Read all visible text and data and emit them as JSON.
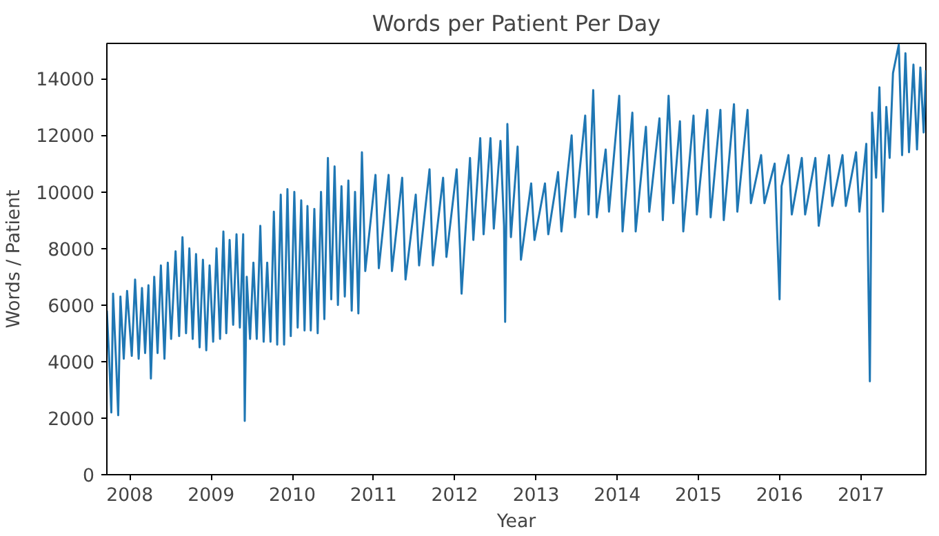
{
  "chart_data": {
    "type": "line",
    "title": "Words per Patient Per Day",
    "xlabel": "Year",
    "ylabel": "Words / Patient",
    "xlim": [
      "2007-09-20",
      "2017-10-20"
    ],
    "ylim": [
      0,
      15250
    ],
    "xticks": [
      {
        "value": "2008-01-01",
        "label": "2008"
      },
      {
        "value": "2009-01-01",
        "label": "2009"
      },
      {
        "value": "2010-01-01",
        "label": "2010"
      },
      {
        "value": "2011-01-01",
        "label": "2011"
      },
      {
        "value": "2012-01-01",
        "label": "2012"
      },
      {
        "value": "2013-01-01",
        "label": "2013"
      },
      {
        "value": "2014-01-01",
        "label": "2014"
      },
      {
        "value": "2015-01-01",
        "label": "2015"
      },
      {
        "value": "2016-01-01",
        "label": "2016"
      },
      {
        "value": "2017-01-01",
        "label": "2017"
      }
    ],
    "yticks": [
      0,
      2000,
      4000,
      6000,
      8000,
      10000,
      12000,
      14000
    ],
    "grid": false,
    "marker": "none",
    "line_style": "solid",
    "x": [
      "2007-09-20",
      "2007-10-01",
      "2007-10-10",
      "2007-10-18",
      "2007-11-01",
      "2007-11-10",
      "2007-11-20",
      "2007-12-05",
      "2007-12-20",
      "2008-01-10",
      "2008-01-25",
      "2008-02-10",
      "2008-02-25",
      "2008-03-10",
      "2008-03-25",
      "2008-04-05",
      "2008-04-20",
      "2008-05-05",
      "2008-05-20",
      "2008-06-05",
      "2008-06-20",
      "2008-07-05",
      "2008-07-25",
      "2008-08-10",
      "2008-08-25",
      "2008-09-10",
      "2008-09-25",
      "2008-10-10",
      "2008-10-25",
      "2008-11-10",
      "2008-11-25",
      "2008-12-10",
      "2008-12-25",
      "2009-01-10",
      "2009-01-25",
      "2009-02-10",
      "2009-02-25",
      "2009-03-10",
      "2009-03-25",
      "2009-04-10",
      "2009-04-25",
      "2009-05-10",
      "2009-05-25",
      "2009-06-01",
      "2009-06-10",
      "2009-06-25",
      "2009-07-10",
      "2009-07-25",
      "2009-08-10",
      "2009-08-25",
      "2009-09-10",
      "2009-09-25",
      "2009-10-10",
      "2009-10-25",
      "2009-11-10",
      "2009-11-25",
      "2009-12-10",
      "2009-12-25",
      "2010-01-10",
      "2010-01-25",
      "2010-02-10",
      "2010-02-25",
      "2010-03-10",
      "2010-03-25",
      "2010-04-10",
      "2010-04-25",
      "2010-05-10",
      "2010-05-25",
      "2010-06-10",
      "2010-06-25",
      "2010-07-10",
      "2010-07-25",
      "2010-08-10",
      "2010-08-25",
      "2010-09-10",
      "2010-09-25",
      "2010-10-10",
      "2010-10-25",
      "2010-11-10",
      "2010-11-25",
      "2011-01-10",
      "2011-01-25",
      "2011-03-10",
      "2011-03-25",
      "2011-05-10",
      "2011-05-25",
      "2011-07-10",
      "2011-07-25",
      "2011-09-10",
      "2011-09-25",
      "2011-11-10",
      "2011-11-25",
      "2012-01-10",
      "2012-01-25",
      "2012-02-01",
      "2012-03-10",
      "2012-03-25",
      "2012-04-25",
      "2012-05-10",
      "2012-06-10",
      "2012-06-25",
      "2012-07-25",
      "2012-08-10",
      "2012-08-15",
      "2012-08-25",
      "2012-09-10",
      "2012-10-10",
      "2012-10-25",
      "2012-12-10",
      "2012-12-25",
      "2013-02-10",
      "2013-02-25",
      "2013-04-10",
      "2013-04-25",
      "2013-06-10",
      "2013-06-25",
      "2013-08-10",
      "2013-08-25",
      "2013-09-15",
      "2013-10-01",
      "2013-11-10",
      "2013-11-25",
      "2014-01-10",
      "2014-01-25",
      "2014-03-10",
      "2014-03-25",
      "2014-05-10",
      "2014-05-25",
      "2014-07-10",
      "2014-07-25",
      "2014-08-20",
      "2014-09-10",
      "2014-10-10",
      "2014-10-25",
      "2014-12-10",
      "2014-12-25",
      "2015-02-10",
      "2015-02-25",
      "2015-04-10",
      "2015-04-25",
      "2015-06-10",
      "2015-06-25",
      "2015-08-10",
      "2015-08-25",
      "2015-10-10",
      "2015-10-25",
      "2015-12-10",
      "2016-01-01",
      "2016-01-10",
      "2016-02-10",
      "2016-02-25",
      "2016-04-10",
      "2016-04-25",
      "2016-06-10",
      "2016-06-25",
      "2016-08-10",
      "2016-08-25",
      "2016-10-10",
      "2016-10-25",
      "2016-12-10",
      "2016-12-25",
      "2017-01-25",
      "2017-02-10",
      "2017-02-20",
      "2017-03-10",
      "2017-03-25",
      "2017-04-10",
      "2017-04-25",
      "2017-05-10",
      "2017-05-25",
      "2017-06-20",
      "2017-07-05",
      "2017-07-20",
      "2017-08-05",
      "2017-08-25",
      "2017-09-10",
      "2017-09-25",
      "2017-10-10",
      "2017-10-20"
    ],
    "series": [
      {
        "color": "#1f77b4",
        "values": [
          5800,
          4000,
          2200,
          6400,
          3900,
          2100,
          6300,
          4100,
          6500,
          4200,
          6900,
          4100,
          6600,
          4300,
          6700,
          3400,
          7000,
          4300,
          7400,
          4100,
          7500,
          4800,
          7900,
          4900,
          8400,
          5000,
          8000,
          4800,
          7800,
          4500,
          7600,
          4400,
          7400,
          4700,
          8000,
          4800,
          8600,
          5000,
          8300,
          5300,
          8500,
          5200,
          8500,
          1900,
          7000,
          4800,
          7500,
          4800,
          8800,
          4700,
          7500,
          4700,
          9300,
          4600,
          9900,
          4600,
          10100,
          4900,
          10000,
          5200,
          9700,
          5100,
          9500,
          5100,
          9400,
          5000,
          10000,
          5500,
          11200,
          6200,
          10900,
          6000,
          10200,
          6300,
          10400,
          5800,
          10000,
          5700,
          11400,
          7200,
          10600,
          7300,
          10600,
          7200,
          10500,
          6900,
          9900,
          7400,
          10800,
          7400,
          10500,
          7700,
          10800,
          8000,
          6400,
          11200,
          8300,
          11900,
          8500,
          11900,
          8700,
          11800,
          8800,
          5400,
          12400,
          8400,
          11600,
          7600,
          10300,
          8300,
          10300,
          8500,
          10700,
          8600,
          12000,
          9100,
          12700,
          9200,
          13600,
          9100,
          11500,
          9300,
          13400,
          8600,
          12800,
          8600,
          12300,
          9300,
          12600,
          9000,
          13400,
          9600,
          12500,
          8600,
          12700,
          9200,
          12900,
          9100,
          12900,
          9000,
          13100,
          9300,
          12900,
          9600,
          11300,
          9600,
          11000,
          6200,
          10200,
          11300,
          9200,
          11200,
          9200,
          11200,
          8800,
          11300,
          9500,
          11300,
          9500,
          11400,
          9300,
          11700,
          3300,
          12800,
          10500,
          13700,
          9300,
          13000,
          11200,
          14200,
          15200,
          11300,
          14900,
          11400,
          14500,
          11500,
          14400,
          12100,
          14300
        ]
      }
    ]
  }
}
